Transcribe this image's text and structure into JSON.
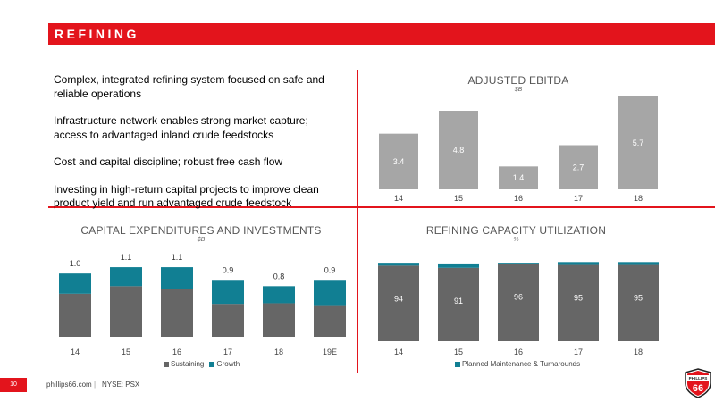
{
  "header": {
    "title": "REFINING",
    "color": "#e3141c"
  },
  "bullets": [
    "Complex, integrated refining system focused on safe and reliable operations",
    "Infrastructure network enables strong market capture; access to advantaged inland crude feedstocks",
    "Cost and capital discipline; robust free cash flow",
    "Investing in high-return capital projects to improve clean product yield and run advantaged crude feedstock"
  ],
  "footer": {
    "page_number": "10",
    "url": "phillips66.com",
    "separator": "|",
    "ticker": "NYSE: PSX"
  },
  "logo": {
    "brand": "PHILLIPS",
    "number": "66",
    "colors": {
      "shield": "#e3141c",
      "outline": "#222222"
    }
  },
  "colors": {
    "gray_bar": "#a6a6a6",
    "sustaining": "#666666",
    "growth": "#117f93"
  },
  "chart_data": [
    {
      "id": "ebitda",
      "type": "bar",
      "title": "ADJUSTED EBITDA",
      "unit": "$B",
      "categories": [
        "14",
        "15",
        "16",
        "17",
        "18"
      ],
      "values": [
        3.4,
        4.8,
        1.4,
        2.7,
        5.7
      ],
      "ylim": [
        0,
        6
      ],
      "grid": false,
      "legend": null
    },
    {
      "id": "capex",
      "type": "bar",
      "stacked": true,
      "title": "CAPITAL EXPENDITURES AND INVESTMENTS",
      "unit": "$B",
      "categories": [
        "14",
        "15",
        "16",
        "17",
        "18",
        "19E"
      ],
      "series": [
        {
          "name": "Sustaining",
          "values": [
            0.68,
            0.8,
            0.75,
            0.52,
            0.53,
            0.5
          ]
        },
        {
          "name": "Growth",
          "values": [
            0.32,
            0.3,
            0.35,
            0.38,
            0.27,
            0.4
          ]
        }
      ],
      "totals": [
        "1.0",
        "1.1",
        "1.1",
        "0.9",
        "0.8",
        "0.9"
      ],
      "ylim": [
        0,
        1.2
      ],
      "grid": false,
      "legend": "bottom"
    },
    {
      "id": "utilization",
      "type": "bar",
      "stacked": true,
      "title": "REFINING CAPACITY UTILIZATION",
      "unit": "%",
      "categories": [
        "14",
        "15",
        "16",
        "17",
        "18"
      ],
      "series": [
        {
          "name": "Utilization",
          "values": [
            94,
            91,
            96,
            95,
            95
          ]
        },
        {
          "name": "Planned Maintenance & Turnarounds",
          "values": [
            4,
            6,
            2,
            4,
            4
          ]
        }
      ],
      "ylim": [
        0,
        100
      ],
      "grid": false,
      "legend": "bottom"
    }
  ]
}
